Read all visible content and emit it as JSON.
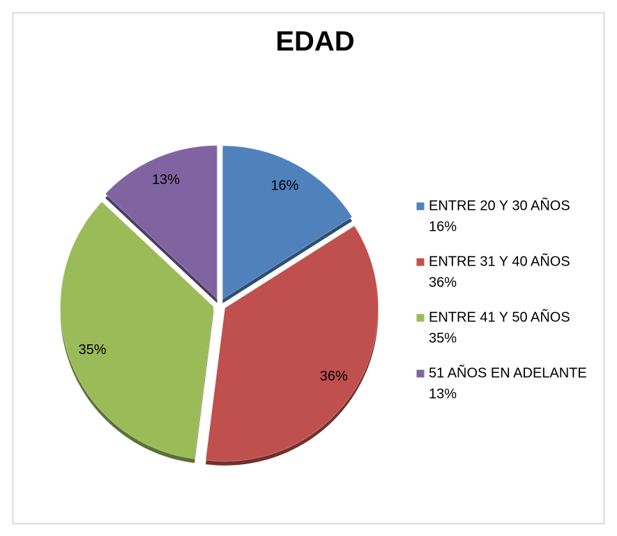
{
  "chart_data": {
    "type": "pie",
    "title": "EDAD",
    "categories": [
      "ENTRE 20 Y 30 AÑOS",
      "ENTRE 31 Y 40 AÑOS",
      "ENTRE 41 Y 50 AÑOS",
      "51 AÑOS EN ADELANTE"
    ],
    "values": [
      16,
      36,
      35,
      13
    ],
    "value_labels": [
      "16%",
      "36%",
      "35%",
      "13%"
    ],
    "colors": [
      "#4f81bd",
      "#c0504d",
      "#9bbb59",
      "#8064a2"
    ],
    "legend": "right"
  }
}
